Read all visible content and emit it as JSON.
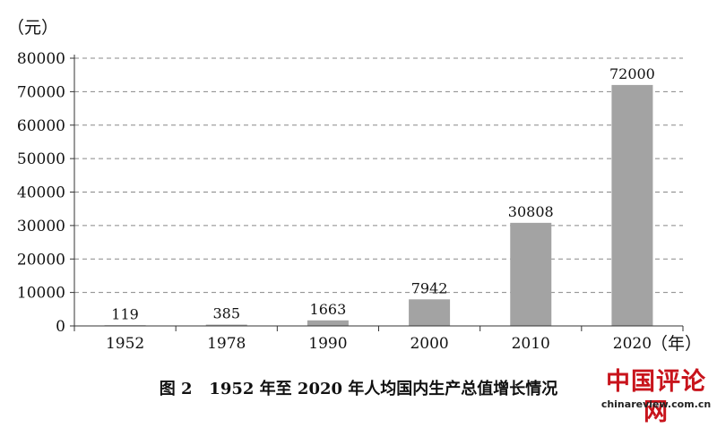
{
  "chart_data": {
    "type": "bar",
    "title": "图 2 1952 年至 2020 年人均国内生产总值增长情况",
    "y_unit": "（元）",
    "x_unit": "（年）",
    "categories": [
      "1952",
      "1978",
      "1990",
      "2000",
      "2010",
      "2020"
    ],
    "values": [
      119,
      385,
      1663,
      7942,
      30808,
      72000
    ],
    "data_labels": [
      "119",
      "385",
      "1663",
      "7942",
      "30808",
      "72000"
    ],
    "ylim": [
      0,
      80000
    ],
    "yticks": [
      0,
      10000,
      20000,
      30000,
      40000,
      50000,
      60000,
      70000,
      80000
    ],
    "ytick_labels": [
      "0",
      "10000",
      "20000",
      "30000",
      "40000",
      "50000",
      "60000",
      "70000",
      "80000"
    ],
    "grid": true,
    "grid_style": "dashed",
    "bar_color": "#a3a3a3",
    "legend": "none"
  },
  "caption": {
    "figure_no": "图 2",
    "text": "1952 年至 2020 年人均国内生产总值增长情况"
  },
  "watermark": {
    "main": "中国评论网",
    "sub": "chinareview.com.cn",
    "color": "#c8141c"
  }
}
